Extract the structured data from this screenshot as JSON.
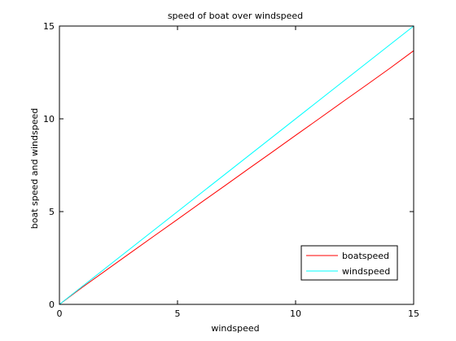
{
  "chart_data": {
    "type": "line",
    "title": "speed of boat over windspeed",
    "xlabel": "windspeed",
    "ylabel": "boat speed and windspeed",
    "xlim": [
      0,
      15
    ],
    "ylim": [
      0,
      15
    ],
    "xticks": [
      0,
      5,
      10,
      15
    ],
    "yticks": [
      0,
      5,
      10,
      15
    ],
    "grid": false,
    "legend_position": "bottom-right",
    "series": [
      {
        "name": "boatspeed",
        "color": "#ff0000",
        "x": [
          0,
          1,
          2,
          3,
          4,
          5,
          6,
          7,
          8,
          9,
          10,
          11,
          12,
          13,
          14,
          15
        ],
        "y": [
          0,
          0.95,
          1.86,
          2.77,
          3.68,
          4.58,
          5.49,
          6.39,
          7.3,
          8.2,
          9.11,
          10.01,
          10.92,
          11.82,
          12.73,
          13.67
        ]
      },
      {
        "name": "windspeed",
        "color": "#00ffff",
        "x": [
          0,
          15
        ],
        "y": [
          0,
          15
        ]
      }
    ]
  }
}
